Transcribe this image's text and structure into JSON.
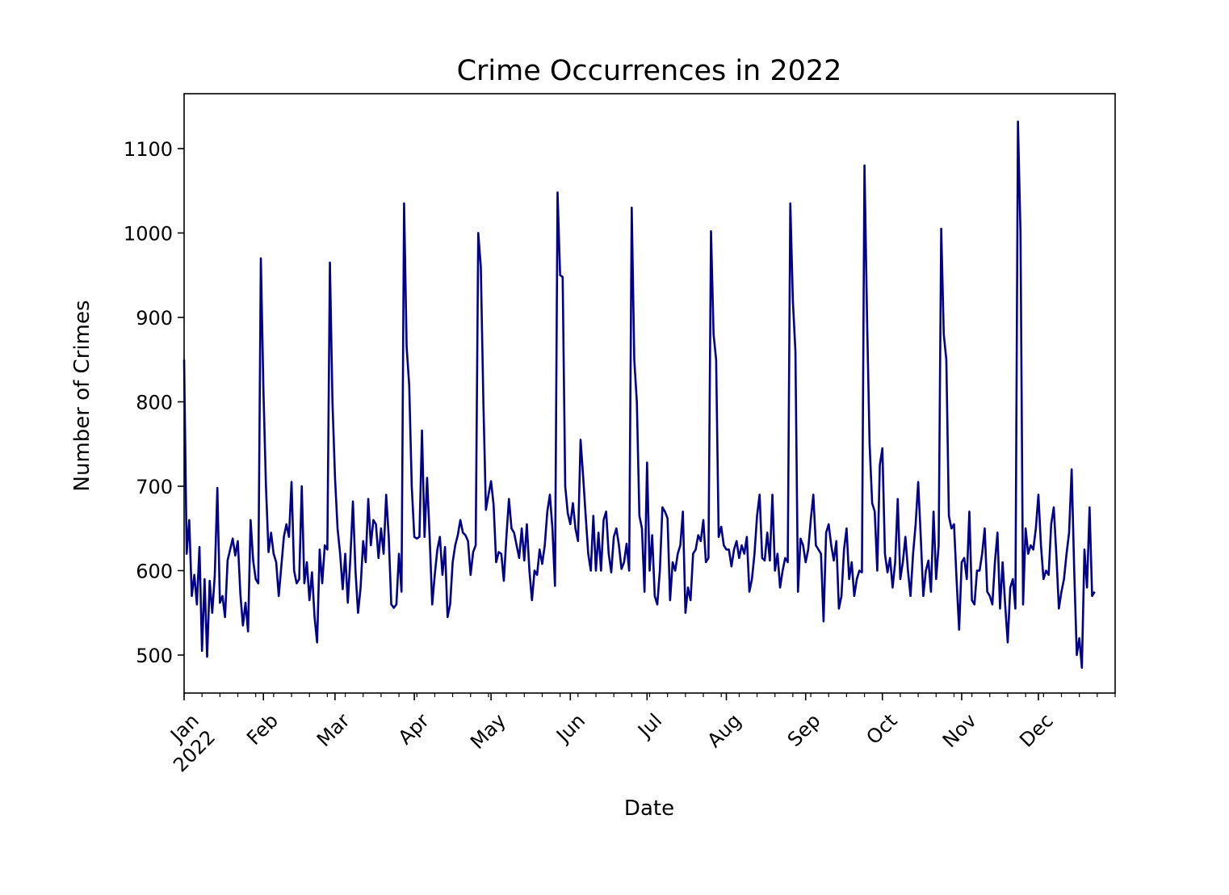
{
  "chart_data": {
    "type": "line",
    "title": "Crime Occurrences in 2022",
    "xlabel": "Date",
    "ylabel": "Number of Crimes",
    "x_start": "2022-01-01",
    "x_end": "2022-12-31",
    "ylim": [
      455,
      1165
    ],
    "grid": false,
    "line_color": "#00008B",
    "yticks": [
      500,
      600,
      700,
      800,
      900,
      1000,
      1100
    ],
    "xticks": [
      {
        "label": "Jan\n2022",
        "date": "2022-01-01"
      },
      {
        "label": "Feb",
        "date": "2022-02-01"
      },
      {
        "label": "Mar",
        "date": "2022-03-01"
      },
      {
        "label": "Apr",
        "date": "2022-04-01"
      },
      {
        "label": "May",
        "date": "2022-05-01"
      },
      {
        "label": "Jun",
        "date": "2022-06-01"
      },
      {
        "label": "Jul",
        "date": "2022-07-01"
      },
      {
        "label": "Aug",
        "date": "2022-08-01"
      },
      {
        "label": "Sep",
        "date": "2022-09-01"
      },
      {
        "label": "Oct",
        "date": "2022-10-01"
      },
      {
        "label": "Nov",
        "date": "2022-11-01"
      },
      {
        "label": "Dec",
        "date": "2022-12-01"
      }
    ],
    "series": [
      {
        "values": [
          850,
          620,
          660,
          570,
          595,
          560,
          628,
          505,
          590,
          498,
          588,
          550,
          595,
          698,
          562,
          570,
          545,
          612,
          625,
          638,
          618,
          635,
          572,
          535,
          562,
          528,
          660,
          612,
          590,
          585,
          970,
          815,
          700,
          622,
          645,
          620,
          610,
          570,
          605,
          640,
          655,
          640,
          705,
          600,
          585,
          590,
          700,
          585,
          610,
          565,
          598,
          545,
          515,
          625,
          585,
          630,
          625,
          965,
          800,
          710,
          650,
          620,
          578,
          620,
          562,
          615,
          682,
          600,
          550,
          580,
          635,
          610,
          685,
          630,
          660,
          655,
          615,
          650,
          620,
          690,
          640,
          560,
          556,
          560,
          620,
          575,
          1035,
          865,
          820,
          700,
          640,
          638,
          640,
          766,
          640,
          710,
          640,
          560,
          595,
          625,
          640,
          595,
          628,
          545,
          560,
          610,
          630,
          642,
          660,
          645,
          642,
          635,
          595,
          622,
          630,
          1000,
          960,
          800,
          672,
          690,
          706,
          678,
          610,
          622,
          620,
          588,
          640,
          685,
          650,
          645,
          630,
          615,
          650,
          612,
          655,
          600,
          565,
          600,
          595,
          625,
          608,
          630,
          670,
          690,
          650,
          582,
          1048,
          950,
          948,
          700,
          668,
          655,
          680,
          650,
          635,
          755,
          712,
          665,
          620,
          600,
          665,
          600,
          645,
          600,
          660,
          670,
          620,
          598,
          640,
          650,
          630,
          602,
          610,
          632,
          600,
          1030,
          850,
          800,
          665,
          650,
          575,
          728,
          600,
          642,
          570,
          560,
          600,
          675,
          670,
          662,
          565,
          610,
          600,
          620,
          630,
          670,
          550,
          580,
          565,
          620,
          625,
          642,
          635,
          660,
          610,
          615,
          1002,
          880,
          850,
          640,
          652,
          630,
          625,
          625,
          605,
          625,
          635,
          615,
          630,
          620,
          640,
          575,
          590,
          620,
          665,
          690,
          615,
          612,
          645,
          612,
          690,
          600,
          620,
          580,
          600,
          615,
          610,
          1035,
          920,
          860,
          575,
          638,
          630,
          610,
          625,
          660,
          690,
          630,
          625,
          620,
          540,
          645,
          655,
          630,
          612,
          635,
          555,
          570,
          625,
          650,
          590,
          610,
          570,
          590,
          600,
          598,
          1080,
          900,
          750,
          680,
          670,
          600,
          725,
          745,
          620,
          598,
          615,
          580,
          610,
          685,
          590,
          610,
          640,
          600,
          570,
          620,
          655,
          705,
          640,
          570,
          600,
          612,
          575,
          670,
          590,
          630,
          1005,
          880,
          850,
          665,
          650,
          655,
          590,
          530,
          610,
          615,
          590,
          670,
          565,
          560,
          600,
          600,
          620,
          650,
          575,
          570,
          560,
          610,
          645,
          555,
          610,
          560,
          515,
          580,
          590,
          555,
          1132,
          1000,
          560,
          650,
          620,
          630,
          625,
          650,
          690,
          630,
          590,
          600,
          595,
          655,
          675,
          620,
          555,
          575,
          590,
          620,
          645,
          720,
          600,
          500,
          520,
          485,
          625,
          580,
          675,
          570,
          575
        ]
      }
    ]
  }
}
